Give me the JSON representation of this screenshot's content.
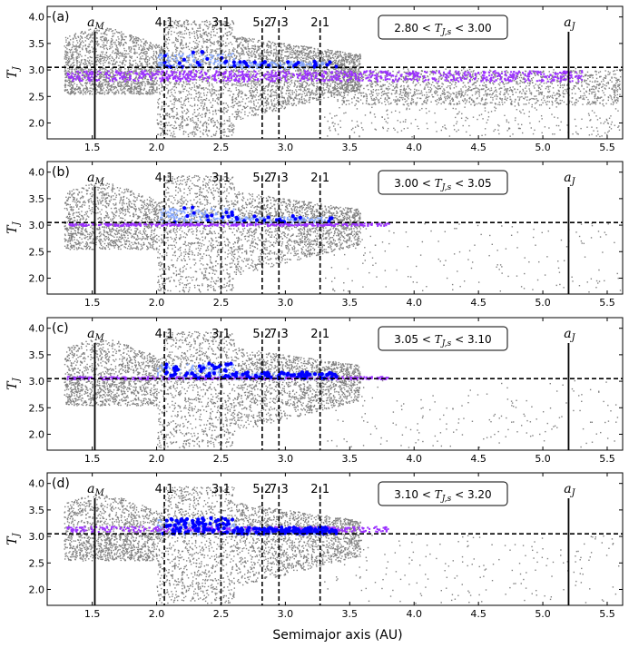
{
  "figure": {
    "xlabel": "Semimajor axis (AU)",
    "ylabel": "T_J"
  },
  "chart_data": [
    {
      "type": "scatter",
      "panel_label": "(a)",
      "range_label": "2.80 < T_J,s < 3.00",
      "t_low": 2.8,
      "t_high": 3.0,
      "xlim": [
        1.15,
        5.62
      ],
      "ylim": [
        1.7,
        4.2
      ],
      "xticks": [
        "1.5",
        "2.0",
        "2.5",
        "3.0",
        "3.5",
        "4.0",
        "4.5",
        "5.0",
        "5.5"
      ],
      "yticks": [
        "2.0",
        "2.5",
        "3.0",
        "3.5",
        "4.0"
      ],
      "hline": 3.05,
      "resonances": [
        {
          "label": "4:1",
          "a": 2.06
        },
        {
          "label": "3:1",
          "a": 2.5
        },
        {
          "label": "5:2",
          "a": 2.82
        },
        {
          "label": "7:3",
          "a": 2.95
        },
        {
          "label": "2:1",
          "a": 3.27
        }
      ],
      "planets": [
        {
          "label": "a_M",
          "a": 1.52
        },
        {
          "label": "a_J",
          "a": 5.2
        }
      ],
      "series": [
        {
          "name": "",
          "color": "#808080",
          "kind": "background-particles"
        },
        {
          "name": "",
          "color": "#9b30ff",
          "kind": "source-band"
        },
        {
          "name": "",
          "color": "#87a9ff",
          "kind": "light-blue-region"
        },
        {
          "name": "",
          "color": "#0000ff",
          "kind": "blue-points"
        }
      ]
    },
    {
      "type": "scatter",
      "panel_label": "(b)",
      "range_label": "3.00 < T_J,s < 3.05",
      "t_low": 3.0,
      "t_high": 3.05,
      "xlim": [
        1.15,
        5.62
      ],
      "ylim": [
        1.7,
        4.2
      ],
      "xticks": [
        "1.5",
        "2.0",
        "2.5",
        "3.0",
        "3.5",
        "4.0",
        "4.5",
        "5.0",
        "5.5"
      ],
      "yticks": [
        "2.0",
        "2.5",
        "3.0",
        "3.5",
        "4.0"
      ],
      "hline": 3.05,
      "resonances": [
        {
          "label": "4:1",
          "a": 2.06
        },
        {
          "label": "3:1",
          "a": 2.5
        },
        {
          "label": "5:2",
          "a": 2.82
        },
        {
          "label": "7:3",
          "a": 2.95
        },
        {
          "label": "2:1",
          "a": 3.27
        }
      ],
      "planets": [
        {
          "label": "a_M",
          "a": 1.52
        },
        {
          "label": "a_J",
          "a": 5.2
        }
      ],
      "series": [
        {
          "name": "",
          "color": "#808080",
          "kind": "background-particles"
        },
        {
          "name": "",
          "color": "#9b30ff",
          "kind": "source-band"
        },
        {
          "name": "",
          "color": "#87a9ff",
          "kind": "light-blue-region"
        },
        {
          "name": "",
          "color": "#0000ff",
          "kind": "blue-points"
        }
      ]
    },
    {
      "type": "scatter",
      "panel_label": "(c)",
      "range_label": "3.05 < T_J,s < 3.10",
      "t_low": 3.05,
      "t_high": 3.1,
      "xlim": [
        1.15,
        5.62
      ],
      "ylim": [
        1.7,
        4.2
      ],
      "xticks": [
        "1.5",
        "2.0",
        "2.5",
        "3.0",
        "3.5",
        "4.0",
        "4.5",
        "5.0",
        "5.5"
      ],
      "yticks": [
        "2.0",
        "2.5",
        "3.0",
        "3.5",
        "4.0"
      ],
      "hline": 3.05,
      "resonances": [
        {
          "label": "4:1",
          "a": 2.06
        },
        {
          "label": "3:1",
          "a": 2.5
        },
        {
          "label": "5:2",
          "a": 2.82
        },
        {
          "label": "7:3",
          "a": 2.95
        },
        {
          "label": "2:1",
          "a": 3.27
        }
      ],
      "planets": [
        {
          "label": "a_M",
          "a": 1.52
        },
        {
          "label": "a_J",
          "a": 5.2
        }
      ],
      "series": [
        {
          "name": "",
          "color": "#808080",
          "kind": "background-particles"
        },
        {
          "name": "",
          "color": "#9b30ff",
          "kind": "source-band"
        },
        {
          "name": "",
          "color": "#87a9ff",
          "kind": "light-blue-region"
        },
        {
          "name": "",
          "color": "#0000ff",
          "kind": "blue-points"
        }
      ]
    },
    {
      "type": "scatter",
      "panel_label": "(d)",
      "range_label": "3.10 < T_J,s < 3.20",
      "t_low": 3.1,
      "t_high": 3.2,
      "xlim": [
        1.15,
        5.62
      ],
      "ylim": [
        1.7,
        4.2
      ],
      "xticks": [
        "1.5",
        "2.0",
        "2.5",
        "3.0",
        "3.5",
        "4.0",
        "4.5",
        "5.0",
        "5.5"
      ],
      "yticks": [
        "2.0",
        "2.5",
        "3.0",
        "3.5",
        "4.0"
      ],
      "hline": 3.05,
      "resonances": [
        {
          "label": "4:1",
          "a": 2.06
        },
        {
          "label": "3:1",
          "a": 2.5
        },
        {
          "label": "5:2",
          "a": 2.82
        },
        {
          "label": "7:3",
          "a": 2.95
        },
        {
          "label": "2:1",
          "a": 3.27
        }
      ],
      "planets": [
        {
          "label": "a_M",
          "a": 1.52
        },
        {
          "label": "a_J",
          "a": 5.2
        }
      ],
      "series": [
        {
          "name": "",
          "color": "#808080",
          "kind": "background-particles"
        },
        {
          "name": "",
          "color": "#9b30ff",
          "kind": "source-band"
        },
        {
          "name": "",
          "color": "#87a9ff",
          "kind": "light-blue-region"
        },
        {
          "name": "",
          "color": "#0000ff",
          "kind": "blue-points"
        }
      ]
    }
  ]
}
